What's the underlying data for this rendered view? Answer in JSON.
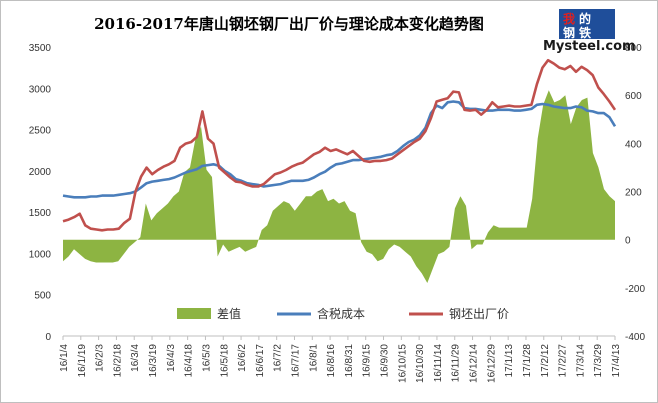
{
  "chart_data": {
    "type": "line",
    "title": "2016-2017年唐山钢坯钢厂出厂价与理论成本变化趋势图",
    "y_left": {
      "lim": [
        0,
        3500
      ],
      "ticks": [
        0,
        500,
        1000,
        1500,
        2000,
        2500,
        3000,
        3500
      ]
    },
    "y_right": {
      "lim": [
        -400,
        800
      ],
      "ticks": [
        -400,
        -200,
        0,
        200,
        400,
        600,
        800
      ]
    },
    "x_tick_labels": [
      "16/1/4",
      "16/1/19",
      "16/2/3",
      "16/2/18",
      "16/3/4",
      "16/3/19",
      "16/4/3",
      "16/4/18",
      "16/5/3",
      "16/5/18",
      "16/6/2",
      "16/6/17",
      "16/7/2",
      "16/7/17",
      "16/8/1",
      "16/8/16",
      "16/8/31",
      "16/9/15",
      "16/9/30",
      "16/10/15",
      "16/10/30",
      "16/11/14",
      "16/11/29",
      "16/12/14",
      "16/12/29",
      "17/1/13",
      "17/1/28",
      "17/2/12",
      "17/2/27",
      "17/3/14",
      "17/3/29",
      "17/4/13"
    ],
    "legend_position": "bottom",
    "grid": false,
    "series": [
      {
        "name": "差值",
        "kind": "area",
        "axis": "right",
        "color": "#8db442",
        "values": [
          -90,
          -70,
          -40,
          -60,
          -80,
          -90,
          -95,
          -95,
          -95,
          -95,
          -90,
          -60,
          -30,
          -10,
          10,
          150,
          80,
          110,
          130,
          150,
          180,
          200,
          280,
          300,
          420,
          470,
          290,
          260,
          -70,
          -20,
          -50,
          -40,
          -30,
          -50,
          -40,
          -30,
          40,
          60,
          120,
          140,
          160,
          150,
          120,
          150,
          180,
          180,
          200,
          210,
          160,
          170,
          150,
          160,
          120,
          110,
          -10,
          -50,
          -60,
          -90,
          -80,
          -40,
          -20,
          -30,
          -50,
          -70,
          -110,
          -140,
          -180,
          -120,
          -60,
          -50,
          -30,
          130,
          180,
          140,
          -40,
          -20,
          -20,
          30,
          60,
          50,
          50,
          50,
          50,
          50,
          50,
          170,
          420,
          560,
          620,
          570,
          580,
          600,
          480,
          550,
          580,
          590,
          360,
          300,
          210,
          180,
          160
        ]
      },
      {
        "name": "含税成本",
        "kind": "line",
        "axis": "left",
        "color": "#4a7ebb",
        "values": [
          1700,
          1690,
          1680,
          1680,
          1680,
          1690,
          1690,
          1700,
          1700,
          1700,
          1710,
          1720,
          1730,
          1750,
          1800,
          1850,
          1870,
          1880,
          1890,
          1900,
          1920,
          1950,
          1980,
          2000,
          2020,
          2060,
          2070,
          2080,
          2060,
          2000,
          1960,
          1900,
          1880,
          1850,
          1840,
          1830,
          1810,
          1820,
          1830,
          1840,
          1860,
          1880,
          1880,
          1880,
          1890,
          1920,
          1960,
          1990,
          2040,
          2080,
          2090,
          2110,
          2130,
          2130,
          2140,
          2150,
          2160,
          2170,
          2190,
          2200,
          2240,
          2300,
          2350,
          2380,
          2430,
          2520,
          2700,
          2790,
          2760,
          2830,
          2840,
          2830,
          2760,
          2750,
          2750,
          2740,
          2730,
          2730,
          2740,
          2740,
          2740,
          2730,
          2730,
          2740,
          2750,
          2800,
          2810,
          2800,
          2780,
          2770,
          2760,
          2760,
          2780,
          2770,
          2730,
          2720,
          2700,
          2700,
          2650,
          2540
        ]
      },
      {
        "name": "钢坯出厂价",
        "kind": "line",
        "axis": "left",
        "color": "#c0504d",
        "values": [
          1390,
          1410,
          1440,
          1480,
          1340,
          1300,
          1290,
          1280,
          1290,
          1290,
          1300,
          1370,
          1420,
          1750,
          1930,
          2040,
          1960,
          2010,
          2050,
          2080,
          2120,
          2280,
          2330,
          2350,
          2410,
          2720,
          2390,
          2330,
          2040,
          1980,
          1920,
          1870,
          1860,
          1830,
          1810,
          1810,
          1840,
          1900,
          1960,
          1980,
          2010,
          2050,
          2080,
          2100,
          2150,
          2200,
          2230,
          2280,
          2240,
          2260,
          2230,
          2200,
          2240,
          2180,
          2120,
          2110,
          2120,
          2120,
          2130,
          2150,
          2200,
          2250,
          2300,
          2350,
          2390,
          2480,
          2640,
          2840,
          2860,
          2880,
          2960,
          2950,
          2740,
          2730,
          2740,
          2680,
          2740,
          2830,
          2770,
          2780,
          2790,
          2780,
          2780,
          2790,
          2800,
          3050,
          3250,
          3340,
          3300,
          3250,
          3230,
          3270,
          3200,
          3260,
          3220,
          3160,
          3010,
          2930,
          2840,
          2740
        ]
      }
    ]
  }
}
